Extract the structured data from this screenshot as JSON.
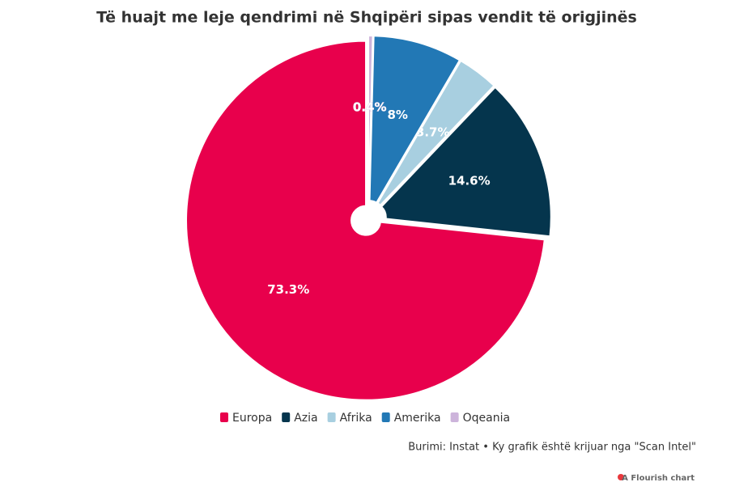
{
  "chart_data": {
    "type": "pie",
    "title": "Të huajt me leje qendrimi në Shqipëri sipas vendit të origjinës",
    "categories": [
      "Europa",
      "Azia",
      "Afrika",
      "Amerika",
      "Oqeania"
    ],
    "values": [
      73.3,
      14.6,
      3.7,
      8,
      0.4
    ],
    "value_labels": [
      "73.3%",
      "14.6%",
      "3.7%",
      "8%",
      "0.4%"
    ],
    "colors": [
      "#e8004c",
      "#05354d",
      "#a8cfe0",
      "#2278b5",
      "#cdb4db"
    ],
    "source": "Burimi: Instat • Ky grafik është krijuar nga \"Scan Intel\"",
    "credit": "A Flourish chart"
  }
}
